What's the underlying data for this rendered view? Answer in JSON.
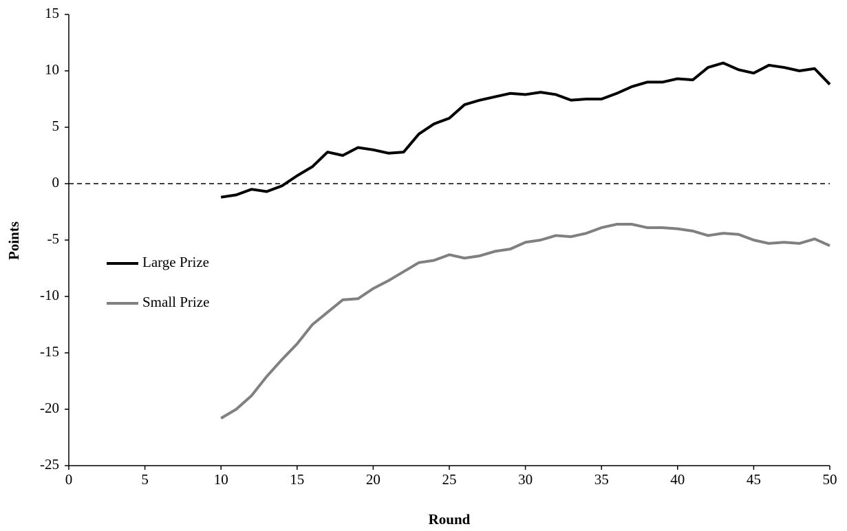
{
  "chart_data": {
    "type": "line",
    "x_label": "Round",
    "y_label": "Points",
    "x": [
      10,
      11,
      12,
      13,
      14,
      15,
      16,
      17,
      18,
      19,
      20,
      21,
      22,
      23,
      24,
      25,
      26,
      27,
      28,
      29,
      30,
      31,
      32,
      33,
      34,
      35,
      36,
      37,
      38,
      39,
      40,
      41,
      42,
      43,
      44,
      45,
      46,
      47,
      48,
      49,
      50
    ],
    "series": [
      {
        "name": "Large Prize",
        "color": "#000000",
        "values": [
          -1.2,
          -1.0,
          -0.5,
          -0.7,
          -0.2,
          0.7,
          1.5,
          2.8,
          2.5,
          3.2,
          3.0,
          2.7,
          2.8,
          4.4,
          5.3,
          5.8,
          7.0,
          7.4,
          7.7,
          8.0,
          7.9,
          8.1,
          7.9,
          7.4,
          7.5,
          7.5,
          8.0,
          8.6,
          9.0,
          9.0,
          9.3,
          9.2,
          10.3,
          10.7,
          10.1,
          9.8,
          10.5,
          10.3,
          10.0,
          10.2,
          8.8
        ]
      },
      {
        "name": "Small Prize",
        "color": "#808080",
        "values": [
          -20.8,
          -20.0,
          -18.8,
          -17.1,
          -15.6,
          -14.2,
          -12.5,
          -11.4,
          -10.3,
          -10.2,
          -9.3,
          -8.6,
          -7.8,
          -7.0,
          -6.8,
          -6.3,
          -6.6,
          -6.4,
          -6.0,
          -5.8,
          -5.2,
          -5.0,
          -4.6,
          -4.7,
          -4.4,
          -3.9,
          -3.6,
          -3.6,
          -3.9,
          -3.9,
          -4.0,
          -4.2,
          -4.6,
          -4.4,
          -4.5,
          -5.0,
          -5.3,
          -5.2,
          -5.3,
          -4.9,
          -5.5
        ]
      }
    ],
    "xlim": [
      0,
      50
    ],
    "xticks": [
      0,
      5,
      10,
      15,
      20,
      25,
      30,
      35,
      40,
      45,
      50
    ],
    "ylim": [
      -25,
      15
    ],
    "yticks": [
      -25,
      -20,
      -15,
      -10,
      -5,
      0,
      5,
      10,
      15
    ],
    "reference_line": 0,
    "grid": false,
    "legend": "left"
  }
}
